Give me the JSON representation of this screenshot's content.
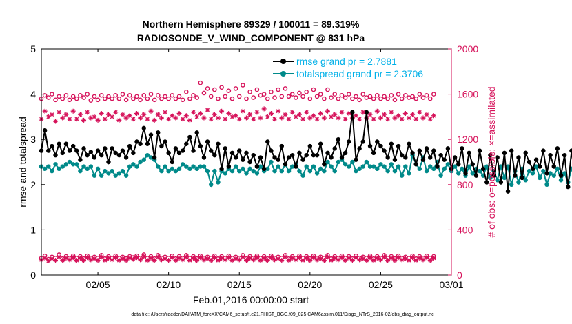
{
  "chart_data": {
    "type": "line",
    "title_line1": "Northern Hemisphere 89329 / 100011 = 89.319%",
    "title_line2": "RADIOSONDE_V_WIND_COMPONENT @ 831 hPa",
    "xlabel": "Feb.01,2016 00:00:00 start",
    "ylabel_left": "rmse and totalspread",
    "ylabel_right": "# of obs: o=possible; ×=assimilated",
    "footnote": "data file: /Users/raeder/DAI/ATM_forcXX/CAM6_setup/f.e21.FHIST_BGC.f09_025.CAM6assim.011/Diags_NTrS_2016-02/obs_diag_output.nc",
    "xlim": [
      1,
      30
    ],
    "x_ticks": [
      5,
      10,
      15,
      20,
      25,
      30
    ],
    "x_tick_labels": [
      "02/05",
      "02/10",
      "02/15",
      "02/20",
      "02/25",
      "03/01"
    ],
    "ylim_left": [
      0,
      5
    ],
    "y_ticks_left": [
      "0",
      "1",
      "2",
      "3",
      "4",
      "5"
    ],
    "ylim_right": [
      0,
      2000
    ],
    "y_ticks_right": [
      "0",
      "400",
      "800",
      "1200",
      "1600",
      "2000"
    ],
    "x_start": 1.0,
    "x_step": 0.25,
    "colors": {
      "rmse": "#000000",
      "spread": "#008a8a",
      "obs": "#d6125a",
      "legend_text": "#00b0e8"
    },
    "series": [
      {
        "name": "rmse",
        "legend": "rmse grand pr = 2.7881",
        "axis": "left",
        "values": [
          2.75,
          3.2,
          2.75,
          2.85,
          2.65,
          2.9,
          2.7,
          2.9,
          2.75,
          2.85,
          2.75,
          2.55,
          2.8,
          2.65,
          2.72,
          2.6,
          2.75,
          2.65,
          2.8,
          2.5,
          2.8,
          2.7,
          2.65,
          2.75,
          2.6,
          2.85,
          2.7,
          2.95,
          2.9,
          3.25,
          2.9,
          3.1,
          2.6,
          3.15,
          2.85,
          2.95,
          2.7,
          2.5,
          2.8,
          2.7,
          2.75,
          2.9,
          3.05,
          2.75,
          3.15,
          2.85,
          2.6,
          2.95,
          2.75,
          2.65,
          2.9,
          2.35,
          2.8,
          2.4,
          2.7,
          2.6,
          2.75,
          2.55,
          2.7,
          2.5,
          2.65,
          2.4,
          2.6,
          2.35,
          2.95,
          2.75,
          2.6,
          2.55,
          2.85,
          2.45,
          2.6,
          2.65,
          2.4,
          2.7,
          2.55,
          2.65,
          2.85,
          2.65,
          2.65,
          2.9,
          2.45,
          2.7,
          2.6,
          2.8,
          3.0,
          2.6,
          2.7,
          2.95,
          3.6,
          2.55,
          2.8,
          2.95,
          3.6,
          2.85,
          2.7,
          2.95,
          2.85,
          2.75,
          2.6,
          2.9,
          2.55,
          2.85,
          2.65,
          2.6,
          2.9,
          2.7,
          2.45,
          2.75,
          2.55,
          2.8,
          2.6,
          2.75,
          2.4,
          2.65,
          2.55,
          2.8,
          2.35,
          2.6,
          2.45,
          2.8,
          2.25,
          2.7,
          2.45,
          2.2,
          2.75,
          2.35,
          2.05,
          2.65,
          2.2,
          2.6,
          2.05,
          2.7,
          1.85,
          2.75,
          2.2,
          2.6,
          2.15,
          2.7,
          2.5,
          2.35,
          2.55,
          2.4,
          2.75,
          2.25,
          2.65,
          2.4,
          2.8,
          2.2,
          2.65,
          1.95,
          2.75,
          2.1,
          2.35,
          2.55,
          2.45,
          2.75,
          2.35,
          2.1,
          2.7,
          2.0
        ]
      },
      {
        "name": "totalspread",
        "legend": "totalspread grand pr = 2.3706",
        "axis": "left",
        "values": [
          2.4,
          2.35,
          2.4,
          2.3,
          2.45,
          2.35,
          2.4,
          2.45,
          2.5,
          2.45,
          2.45,
          2.3,
          2.4,
          2.35,
          2.4,
          2.2,
          2.35,
          2.2,
          2.3,
          2.25,
          2.3,
          2.2,
          2.25,
          2.3,
          2.2,
          2.4,
          2.45,
          2.4,
          2.5,
          2.55,
          2.65,
          2.6,
          2.55,
          2.4,
          2.3,
          2.4,
          2.3,
          2.35,
          2.3,
          2.35,
          2.45,
          2.4,
          2.35,
          2.4,
          2.35,
          2.4,
          2.4,
          2.3,
          2.0,
          2.3,
          2.05,
          2.3,
          2.25,
          2.35,
          2.3,
          2.4,
          2.3,
          2.35,
          2.25,
          2.35,
          2.3,
          2.25,
          2.4,
          2.3,
          2.35,
          2.5,
          2.3,
          2.4,
          2.3,
          2.45,
          2.3,
          2.4,
          2.45,
          2.3,
          2.2,
          2.4,
          2.3,
          2.4,
          2.25,
          2.35,
          2.3,
          2.5,
          2.4,
          2.3,
          2.5,
          2.55,
          2.45,
          2.4,
          2.5,
          2.3,
          2.35,
          2.4,
          2.5,
          2.4,
          2.4,
          2.35,
          2.45,
          2.4,
          2.3,
          2.45,
          2.3,
          2.4,
          2.2,
          2.4,
          2.25,
          2.65,
          2.45,
          2.35,
          2.6,
          2.3,
          2.4,
          2.35,
          2.5,
          2.2,
          2.35,
          2.45,
          2.3,
          2.4,
          2.25,
          2.35,
          2.2,
          2.4,
          2.25,
          2.35,
          2.3,
          2.2,
          2.4,
          2.15,
          2.3,
          2.1,
          2.4,
          2.15,
          2.4,
          2.0,
          2.3,
          2.05,
          2.35,
          2.1,
          2.3,
          2.25,
          2.4,
          2.15,
          2.3,
          2.0,
          2.25,
          2.2,
          2.35,
          2.1,
          2.25,
          2.05,
          2.35,
          2.15,
          2.25,
          2.05,
          2.4,
          2.15,
          2.45,
          2.0
        ]
      },
      {
        "name": "possible_main",
        "axis": "right",
        "values": [
          1560,
          1590,
          1570,
          1600,
          1550,
          1580,
          1560,
          1590,
          1550,
          1580,
          1560,
          1590,
          1570,
          1600,
          1545,
          1580,
          1550,
          1590,
          1560,
          1580,
          1560,
          1590,
          1560,
          1600,
          1550,
          1590,
          1560,
          1580,
          1550,
          1590,
          1560,
          1600,
          1550,
          1590,
          1560,
          1580,
          1560,
          1590,
          1560,
          1580,
          1550,
          1620,
          1560,
          1590,
          1570,
          1700,
          1610,
          1650,
          1580,
          1640,
          1560,
          1660,
          1580,
          1630,
          1560,
          1650,
          1580,
          1680,
          1560,
          1620,
          1570,
          1640,
          1590,
          1600,
          1560,
          1620,
          1570,
          1640,
          1580,
          1650,
          1580,
          1600,
          1570,
          1610,
          1580,
          1620,
          1560,
          1640,
          1580,
          1600,
          1560,
          1640,
          1570,
          1600,
          1560,
          1590,
          1570,
          1600,
          1560,
          1580,
          1550,
          1600,
          1570,
          1580,
          1560,
          1590,
          1560,
          1580,
          1560,
          1590,
          1550,
          1600,
          1560,
          1590,
          1570,
          1580,
          1560,
          1600,
          1570,
          1590,
          1560,
          1600
        ],
        "source_marker": "o"
      },
      {
        "name": "assimilated_main",
        "axis": "right",
        "values": [
          1380,
          1450,
          1400,
          1420,
          1360,
          1440,
          1390,
          1420,
          1380,
          1450,
          1380,
          1420,
          1370,
          1440,
          1390,
          1400,
          1370,
          1430,
          1380,
          1420,
          1400,
          1440,
          1370,
          1420,
          1390,
          1410,
          1380,
          1430,
          1390,
          1420,
          1380,
          1450,
          1370,
          1420,
          1390,
          1440,
          1380,
          1410,
          1390,
          1430,
          1380,
          1410,
          1370,
          1440,
          1400,
          1430,
          1390,
          1460,
          1380,
          1420,
          1390,
          1450,
          1380,
          1430,
          1400,
          1410,
          1380,
          1450,
          1390,
          1420,
          1380,
          1440,
          1390,
          1470,
          1400,
          1430,
          1380,
          1450,
          1390,
          1420,
          1380,
          1440,
          1400,
          1420,
          1380,
          1440,
          1390,
          1410,
          1380,
          1430,
          1390,
          1450,
          1400,
          1420,
          1390,
          1440,
          1380,
          1430,
          1390,
          1410,
          1380,
          1440,
          1390,
          1420,
          1380,
          1450,
          1390,
          1420,
          1380,
          1440,
          1390,
          1410,
          1380,
          1430,
          1390,
          1420,
          1380,
          1440,
          1390,
          1420,
          1380,
          1410
        ]
      },
      {
        "name": "possible_low",
        "axis": "right",
        "values": [
          150,
          170,
          140,
          160,
          150,
          180,
          145,
          165,
          150,
          170,
          150,
          165,
          145,
          170,
          150,
          160,
          150,
          175,
          145,
          165,
          150,
          170,
          150,
          160,
          145,
          165,
          155,
          170,
          150,
          180,
          150,
          165,
          145,
          175,
          150,
          160,
          150,
          170,
          145,
          165,
          150,
          175,
          150,
          165,
          145,
          170,
          150,
          160,
          150,
          170,
          145,
          165,
          150,
          170,
          150,
          160,
          150,
          175,
          145,
          165,
          150,
          170,
          150,
          165,
          145,
          170,
          150,
          160,
          150,
          175,
          145,
          165,
          150,
          170,
          150,
          165,
          145,
          170,
          150,
          160,
          150,
          175,
          145,
          165,
          150,
          170,
          150,
          165,
          145,
          170,
          150,
          160,
          150,
          170,
          145,
          165,
          150,
          175,
          150,
          165,
          145,
          170,
          150,
          160,
          150,
          170,
          145,
          165,
          150,
          170,
          150,
          165
        ]
      },
      {
        "name": "assimilated_low",
        "axis": "right",
        "values": [
          135,
          150,
          125,
          145,
          130,
          160,
          130,
          150,
          135,
          155,
          130,
          150,
          130,
          155,
          135,
          145,
          130,
          160,
          130,
          150,
          135,
          155,
          130,
          145,
          130,
          150,
          140,
          155,
          135,
          165,
          130,
          150,
          130,
          160,
          135,
          145,
          130,
          155,
          130,
          150,
          135,
          160,
          130,
          150,
          130,
          155,
          135,
          145,
          130,
          155,
          130,
          150,
          135,
          155,
          130,
          145,
          135,
          160,
          130,
          150,
          135,
          155,
          130,
          150,
          130,
          155,
          135,
          145,
          130,
          160,
          130,
          150,
          135,
          155,
          130,
          150,
          130,
          155,
          135,
          145,
          130,
          160,
          130,
          150,
          135,
          155,
          130,
          150,
          130,
          155,
          135,
          145,
          130,
          155,
          130,
          150,
          135,
          160,
          130,
          150,
          130,
          155,
          135,
          145,
          130,
          155,
          130,
          150,
          135,
          155,
          130,
          150
        ]
      }
    ]
  }
}
